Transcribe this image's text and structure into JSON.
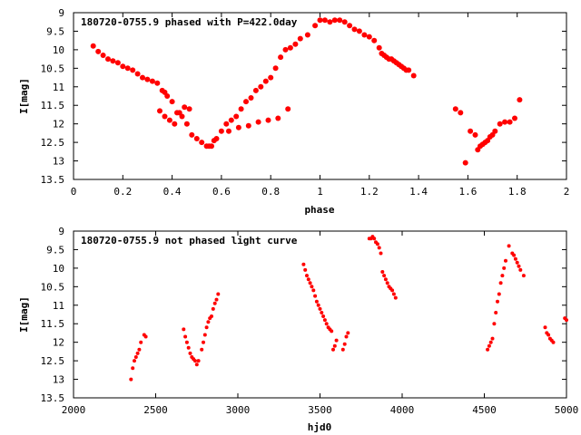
{
  "marker_color": "#ff0000",
  "chart_data": [
    {
      "type": "scatter",
      "title": "180720-0755.9 phased with P=422.0day",
      "xlabel": "phase",
      "ylabel": "I[mag]",
      "xlim": [
        0,
        2
      ],
      "ylim": [
        13.5,
        9
      ],
      "y_inverted": true,
      "grid": false,
      "xticks": [
        {
          "v": 0,
          "label": "0"
        },
        {
          "v": 0.2,
          "label": "0.2"
        },
        {
          "v": 0.4,
          "label": "0.4"
        },
        {
          "v": 0.6,
          "label": "0.6"
        },
        {
          "v": 0.8,
          "label": "0.8"
        },
        {
          "v": 1,
          "label": "1"
        },
        {
          "v": 1.2,
          "label": "1.2"
        },
        {
          "v": 1.4,
          "label": "1.4"
        },
        {
          "v": 1.6,
          "label": "1.6"
        },
        {
          "v": 1.8,
          "label": "1.8"
        },
        {
          "v": 2,
          "label": "2"
        }
      ],
      "yticks": [
        {
          "v": 9,
          "label": "9"
        },
        {
          "v": 9.5,
          "label": "9.5"
        },
        {
          "v": 10,
          "label": "10"
        },
        {
          "v": 10.5,
          "label": "10.5"
        },
        {
          "v": 11,
          "label": "11"
        },
        {
          "v": 11.5,
          "label": "11.5"
        },
        {
          "v": 12,
          "label": "12"
        },
        {
          "v": 12.5,
          "label": "12.5"
        },
        {
          "v": 13,
          "label": "13"
        },
        {
          "v": 13.5,
          "label": "13.5"
        }
      ],
      "series": [
        {
          "x": [
            0.08,
            0.1,
            0.12,
            0.14,
            0.16,
            0.18,
            0.2,
            0.22,
            0.24,
            0.26,
            0.28,
            0.3,
            0.32,
            0.34,
            0.36,
            0.37,
            0.38,
            0.4,
            0.42,
            0.44,
            0.46,
            0.48,
            0.5,
            0.52,
            0.54,
            0.56,
            0.58,
            0.6,
            0.62,
            0.64,
            0.66,
            0.68,
            0.7,
            0.72,
            0.74,
            0.76,
            0.78,
            0.8,
            0.82,
            0.84,
            0.86,
            0.88,
            0.9,
            0.92,
            0.95,
            0.98,
            1.0,
            1.02,
            1.04,
            1.06,
            1.08,
            1.1,
            1.12,
            1.14,
            1.16,
            1.18,
            1.2,
            1.22,
            1.24,
            1.26,
            1.28,
            1.3,
            1.32,
            1.34,
            1.36,
            1.38,
            0.35,
            0.37,
            0.39,
            0.41,
            0.43,
            0.45,
            0.47,
            0.55,
            0.57,
            0.63,
            0.67,
            0.71,
            0.75,
            0.79,
            0.83,
            0.87,
            1.25,
            1.27,
            1.29,
            1.31,
            1.33,
            1.35,
            1.55,
            1.57,
            1.59,
            1.61,
            1.63,
            1.65,
            1.67,
            1.69,
            1.71,
            1.73,
            1.75,
            1.77,
            1.79,
            1.81,
            1.64,
            1.66,
            1.68,
            1.7
          ],
          "y": [
            9.9,
            10.05,
            10.15,
            10.25,
            10.3,
            10.35,
            10.45,
            10.5,
            10.55,
            10.65,
            10.75,
            10.8,
            10.85,
            10.9,
            11.1,
            11.15,
            11.25,
            11.4,
            11.7,
            11.8,
            12.0,
            12.3,
            12.4,
            12.5,
            12.6,
            12.6,
            12.4,
            12.2,
            12.0,
            11.9,
            11.8,
            11.6,
            11.4,
            11.3,
            11.1,
            11.0,
            10.85,
            10.75,
            10.5,
            10.2,
            10.0,
            9.95,
            9.85,
            9.7,
            9.6,
            9.35,
            9.2,
            9.2,
            9.25,
            9.2,
            9.2,
            9.25,
            9.35,
            9.45,
            9.5,
            9.6,
            9.65,
            9.75,
            9.95,
            10.15,
            10.25,
            10.3,
            10.4,
            10.5,
            10.55,
            10.7,
            11.65,
            11.8,
            11.9,
            12.0,
            11.7,
            11.55,
            11.6,
            12.6,
            12.45,
            12.2,
            12.1,
            12.05,
            11.95,
            11.9,
            11.85,
            11.6,
            10.1,
            10.2,
            10.25,
            10.35,
            10.45,
            10.55,
            11.6,
            11.7,
            13.05,
            12.2,
            12.3,
            12.6,
            12.5,
            12.35,
            12.2,
            12.0,
            11.95,
            11.95,
            11.85,
            11.35,
            12.7,
            12.55,
            12.45,
            12.3
          ]
        }
      ]
    },
    {
      "type": "scatter",
      "title": "180720-0755.9 not phased light curve",
      "xlabel": "hjd0",
      "ylabel": "I[mag]",
      "xlim": [
        2000,
        5000
      ],
      "ylim": [
        13.5,
        9
      ],
      "y_inverted": true,
      "grid": false,
      "xticks": [
        {
          "v": 2000,
          "label": "2000"
        },
        {
          "v": 2500,
          "label": "2500"
        },
        {
          "v": 3000,
          "label": "3000"
        },
        {
          "v": 3500,
          "label": "3500"
        },
        {
          "v": 4000,
          "label": "4000"
        },
        {
          "v": 4500,
          "label": "4500"
        },
        {
          "v": 5000,
          "label": "5000"
        }
      ],
      "yticks": [
        {
          "v": 9,
          "label": "9"
        },
        {
          "v": 9.5,
          "label": "9.5"
        },
        {
          "v": 10,
          "label": "10"
        },
        {
          "v": 10.5,
          "label": "10.5"
        },
        {
          "v": 11,
          "label": "11"
        },
        {
          "v": 11.5,
          "label": "11.5"
        },
        {
          "v": 12,
          "label": "12"
        },
        {
          "v": 12.5,
          "label": "12.5"
        },
        {
          "v": 13,
          "label": "13"
        },
        {
          "v": 13.5,
          "label": "13.5"
        }
      ],
      "series": [
        {
          "x": [
            2350,
            2360,
            2370,
            2380,
            2390,
            2400,
            2410,
            2430,
            2440,
            2670,
            2680,
            2690,
            2700,
            2710,
            2720,
            2730,
            2740,
            2750,
            2760,
            2780,
            2790,
            2800,
            2810,
            2820,
            2830,
            2840,
            2850,
            2860,
            2870,
            2880,
            3400,
            3410,
            3420,
            3430,
            3440,
            3450,
            3460,
            3470,
            3480,
            3490,
            3500,
            3510,
            3520,
            3530,
            3540,
            3550,
            3560,
            3570,
            3580,
            3590,
            3600,
            3640,
            3650,
            3660,
            3670,
            3800,
            3810,
            3820,
            3830,
            3840,
            3850,
            3860,
            3870,
            3880,
            3890,
            3900,
            3910,
            3920,
            3930,
            3940,
            3950,
            3960,
            4520,
            4530,
            4540,
            4550,
            4560,
            4570,
            4580,
            4590,
            4600,
            4610,
            4620,
            4630,
            4650,
            4670,
            4680,
            4690,
            4700,
            4710,
            4720,
            4740,
            4870,
            4880,
            4890,
            4900,
            4910,
            4920,
            4990,
            5000
          ],
          "y": [
            13.0,
            12.7,
            12.5,
            12.4,
            12.3,
            12.2,
            12.0,
            11.8,
            11.85,
            11.65,
            11.85,
            12.0,
            12.15,
            12.3,
            12.4,
            12.45,
            12.5,
            12.6,
            12.5,
            12.2,
            12.0,
            11.8,
            11.6,
            11.45,
            11.35,
            11.3,
            11.1,
            10.95,
            10.85,
            10.7,
            9.9,
            10.05,
            10.2,
            10.3,
            10.4,
            10.5,
            10.6,
            10.75,
            10.9,
            11.0,
            11.1,
            11.2,
            11.3,
            11.4,
            11.5,
            11.6,
            11.65,
            11.7,
            12.2,
            12.1,
            11.95,
            12.2,
            12.05,
            11.85,
            11.75,
            9.2,
            9.2,
            9.15,
            9.2,
            9.3,
            9.35,
            9.45,
            9.6,
            10.1,
            10.2,
            10.3,
            10.4,
            10.5,
            10.55,
            10.6,
            10.7,
            10.8,
            12.2,
            12.1,
            12.0,
            11.9,
            11.5,
            11.2,
            10.9,
            10.7,
            10.4,
            10.2,
            10.0,
            9.8,
            9.4,
            9.6,
            9.65,
            9.75,
            9.85,
            9.95,
            10.05,
            10.2,
            11.6,
            11.75,
            11.8,
            11.9,
            11.95,
            12.0,
            11.35,
            11.4
          ]
        }
      ]
    }
  ]
}
